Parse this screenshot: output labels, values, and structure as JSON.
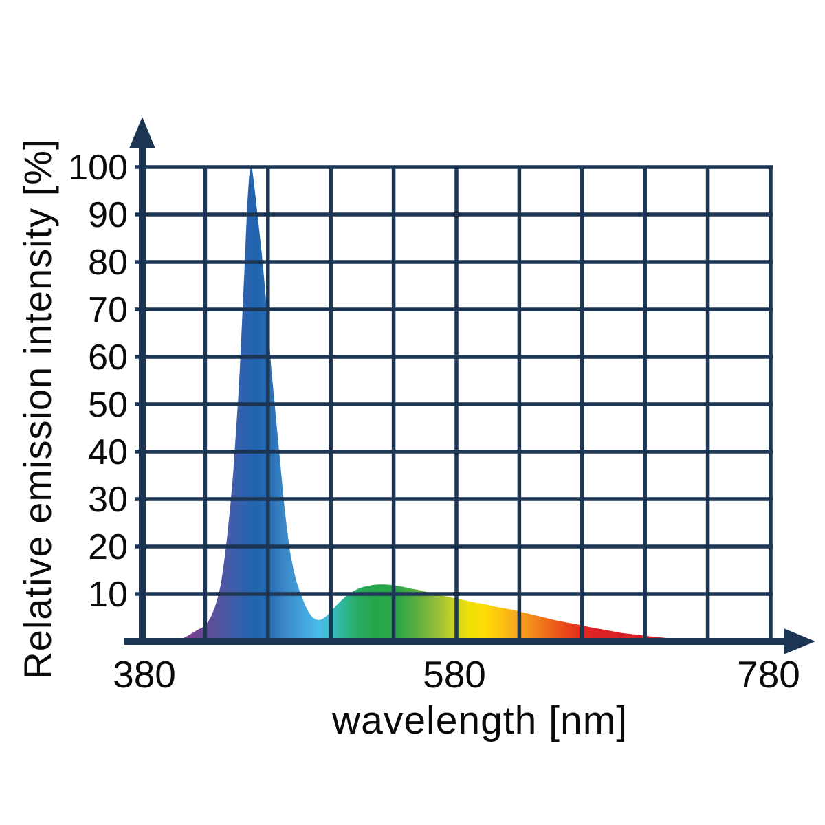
{
  "colors": {
    "background": "#ffffff",
    "axis_and_grid": "#1b3553",
    "text": "#0a0a0a"
  },
  "chart_data": {
    "type": "area",
    "title": "",
    "xlabel": "wavelength [nm]",
    "ylabel": "Relative emission intensity [%]",
    "xlim": [
      380,
      780
    ],
    "ylim": [
      0,
      100
    ],
    "x_tick_labels": [
      "380",
      "580",
      "780"
    ],
    "x_tick_values": [
      380,
      580,
      780
    ],
    "y_tick_labels": [
      "100",
      "90",
      "80",
      "70",
      "60",
      "50",
      "40",
      "30",
      "20",
      "10"
    ],
    "y_tick_values": [
      100,
      90,
      80,
      70,
      60,
      50,
      40,
      30,
      20,
      10
    ],
    "x_grid_step_nm": 40,
    "y_grid_step_pct": 10,
    "grid": "on",
    "legend": "none",
    "description": "LED emission spectrum: narrow blue peak reaching 100% near 449 nm, dip to about 4.5% near 492 nm, broad phosphor hump of about 12% near 530 nm tailing off to zero near 750 nm; area filled with visible-spectrum colors by wavelength",
    "curve_points_nm_pct": [
      [
        400,
        0
      ],
      [
        403,
        0.3
      ],
      [
        406,
        0.7
      ],
      [
        409,
        1.2
      ],
      [
        412,
        1.8
      ],
      [
        415,
        2.4
      ],
      [
        418,
        2.9
      ],
      [
        420,
        3.3
      ],
      [
        422,
        4.2
      ],
      [
        424,
        5.4
      ],
      [
        426,
        7.0
      ],
      [
        428,
        9.2
      ],
      [
        430,
        12.0
      ],
      [
        432,
        16.5
      ],
      [
        434,
        22.0
      ],
      [
        436,
        28.5
      ],
      [
        438,
        36.0
      ],
      [
        440,
        46.0
      ],
      [
        441,
        51.0
      ],
      [
        442,
        57.0
      ],
      [
        443,
        64.0
      ],
      [
        444,
        71.0
      ],
      [
        445,
        78.0
      ],
      [
        446,
        86.0
      ],
      [
        447,
        93.0
      ],
      [
        448,
        98.0
      ],
      [
        449,
        100.0
      ],
      [
        450,
        99.5
      ],
      [
        451,
        97.0
      ],
      [
        452,
        94.0
      ],
      [
        453,
        91.0
      ],
      [
        454,
        88.0
      ],
      [
        456,
        82.0
      ],
      [
        458,
        75.0
      ],
      [
        460,
        67.0
      ],
      [
        462,
        58.0
      ],
      [
        464,
        51.0
      ],
      [
        466,
        44.0
      ],
      [
        468,
        37.0
      ],
      [
        470,
        30.0
      ],
      [
        472,
        24.0
      ],
      [
        474,
        19.0
      ],
      [
        476,
        15.5
      ],
      [
        478,
        12.8
      ],
      [
        480,
        10.8
      ],
      [
        482,
        9.0
      ],
      [
        484,
        7.4
      ],
      [
        486,
        6.1
      ],
      [
        488,
        5.2
      ],
      [
        490,
        4.7
      ],
      [
        492,
        4.5
      ],
      [
        494,
        4.6
      ],
      [
        496,
        5.0
      ],
      [
        498,
        5.6
      ],
      [
        500,
        6.3
      ],
      [
        503,
        7.4
      ],
      [
        506,
        8.4
      ],
      [
        509,
        9.3
      ],
      [
        512,
        10.1
      ],
      [
        515,
        10.7
      ],
      [
        518,
        11.2
      ],
      [
        521,
        11.5
      ],
      [
        524,
        11.7
      ],
      [
        527,
        11.9
      ],
      [
        530,
        12.0
      ],
      [
        534,
        12.0
      ],
      [
        538,
        11.9
      ],
      [
        542,
        11.7
      ],
      [
        546,
        11.5
      ],
      [
        550,
        11.2
      ],
      [
        555,
        10.9
      ],
      [
        560,
        10.5
      ],
      [
        565,
        10.1
      ],
      [
        570,
        9.7
      ],
      [
        575,
        9.4
      ],
      [
        580,
        9.0
      ],
      [
        585,
        8.7
      ],
      [
        590,
        8.3
      ],
      [
        595,
        8.0
      ],
      [
        600,
        7.7
      ],
      [
        605,
        7.3
      ],
      [
        610,
        7.0
      ],
      [
        615,
        6.7
      ],
      [
        620,
        6.3
      ],
      [
        625,
        5.9
      ],
      [
        630,
        5.5
      ],
      [
        635,
        5.1
      ],
      [
        640,
        4.7
      ],
      [
        645,
        4.3
      ],
      [
        650,
        4.0
      ],
      [
        655,
        3.7
      ],
      [
        660,
        3.4
      ],
      [
        665,
        3.0
      ],
      [
        670,
        2.7
      ],
      [
        675,
        2.4
      ],
      [
        680,
        2.1
      ],
      [
        685,
        1.8
      ],
      [
        690,
        1.6
      ],
      [
        695,
        1.4
      ],
      [
        700,
        1.2
      ],
      [
        705,
        1.0
      ],
      [
        710,
        0.85
      ],
      [
        715,
        0.7
      ],
      [
        720,
        0.55
      ],
      [
        725,
        0.45
      ],
      [
        730,
        0.35
      ],
      [
        735,
        0.27
      ],
      [
        740,
        0.2
      ],
      [
        745,
        0.13
      ],
      [
        748,
        0.08
      ],
      [
        752,
        0
      ]
    ],
    "spectrum_gradient_nm_color": [
      {
        "nm": 400,
        "color": "#8a4a9b"
      },
      {
        "nm": 412,
        "color": "#74418f"
      },
      {
        "nm": 420,
        "color": "#654a96"
      },
      {
        "nm": 428,
        "color": "#56549e"
      },
      {
        "nm": 436,
        "color": "#455ca8"
      },
      {
        "nm": 444,
        "color": "#2f62ae"
      },
      {
        "nm": 452,
        "color": "#2063ae"
      },
      {
        "nm": 462,
        "color": "#2a70b8"
      },
      {
        "nm": 472,
        "color": "#3c8cc8"
      },
      {
        "nm": 483,
        "color": "#44a5dc"
      },
      {
        "nm": 492,
        "color": "#49bce8"
      },
      {
        "nm": 500,
        "color": "#3dbdc8"
      },
      {
        "nm": 508,
        "color": "#2eb694"
      },
      {
        "nm": 518,
        "color": "#28ab5f"
      },
      {
        "nm": 528,
        "color": "#26a64b"
      },
      {
        "nm": 542,
        "color": "#2aa546"
      },
      {
        "nm": 556,
        "color": "#63af40"
      },
      {
        "nm": 568,
        "color": "#97bf37"
      },
      {
        "nm": 578,
        "color": "#c8d22a"
      },
      {
        "nm": 588,
        "color": "#f0e008"
      },
      {
        "nm": 598,
        "color": "#fddd04"
      },
      {
        "nm": 608,
        "color": "#fcc30f"
      },
      {
        "nm": 618,
        "color": "#f8a81e"
      },
      {
        "nm": 628,
        "color": "#f28c1d"
      },
      {
        "nm": 638,
        "color": "#ee6b17"
      },
      {
        "nm": 648,
        "color": "#e94c1a"
      },
      {
        "nm": 658,
        "color": "#e2301e"
      },
      {
        "nm": 668,
        "color": "#dc2226"
      },
      {
        "nm": 700,
        "color": "#d51f27"
      },
      {
        "nm": 752,
        "color": "#cd1e25"
      }
    ]
  }
}
